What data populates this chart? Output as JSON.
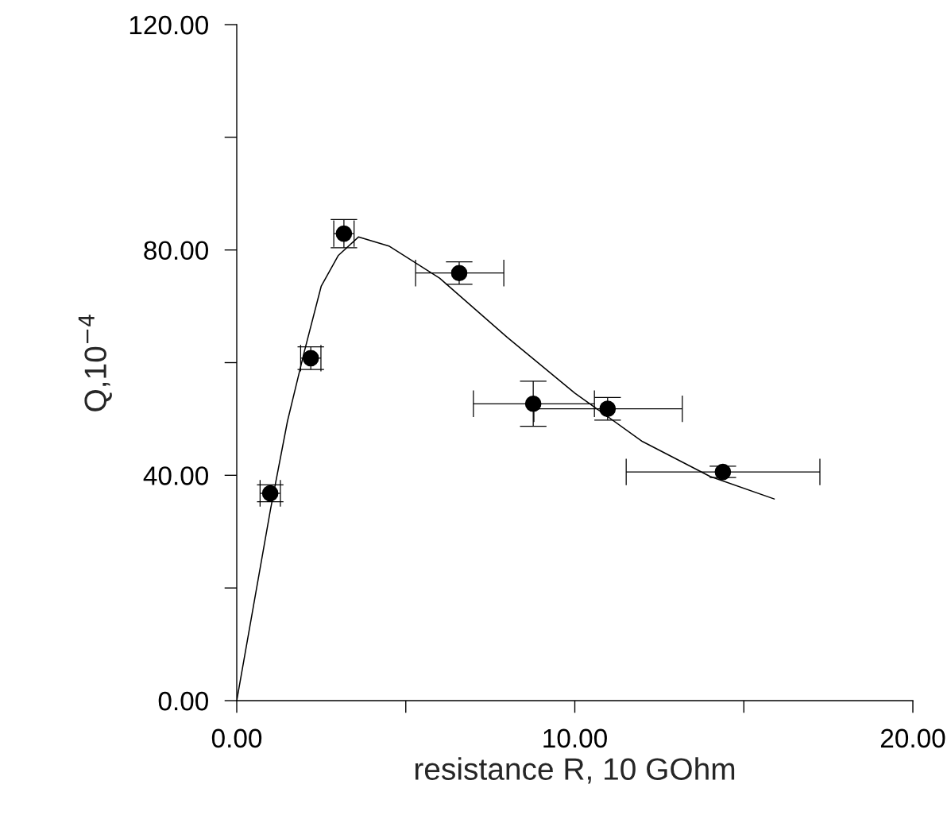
{
  "chart_data": {
    "type": "scatter",
    "xlabel": "resistance R, 10 GOhm",
    "ylabel": "Q,10$^{−4}$",
    "xlim": [
      0,
      20
    ],
    "ylim": [
      0,
      120
    ],
    "xticks": [
      {
        "value": 0,
        "label": "0.00"
      },
      {
        "value": 5,
        "label": null
      },
      {
        "value": 10,
        "label": "10.00"
      },
      {
        "value": 15,
        "label": null
      },
      {
        "value": 20,
        "label": "20.00"
      }
    ],
    "yticks": [
      {
        "value": 0,
        "label": "0.00"
      },
      {
        "value": 20,
        "label": null
      },
      {
        "value": 40,
        "label": "40.00"
      },
      {
        "value": 60,
        "label": null
      },
      {
        "value": 80,
        "label": "80.00"
      },
      {
        "value": 100,
        "label": null
      },
      {
        "value": 120,
        "label": "120.00"
      }
    ],
    "grid": false,
    "legend": false,
    "series": [
      {
        "color": "#000000",
        "marker": "circle",
        "x": [
          0.99,
          2.19,
          3.17,
          6.58,
          8.77,
          10.97,
          14.38
        ],
        "values": [
          36.8,
          60.8,
          82.9,
          75.9,
          52.7,
          51.8,
          40.6
        ],
        "errors": [
          1.5,
          2,
          2.5,
          2,
          4,
          2,
          1
        ],
        "xerrors": [
          0.3,
          0.3,
          0.3,
          [
            5.29,
            7.9
          ],
          [
            7.0,
            10.58
          ],
          [
            8.79,
            13.18
          ],
          [
            11.52,
            17.25
          ]
        ]
      },
      {
        "type": "line",
        "color": "#000000",
        "marker": "none",
        "line_style": "solid",
        "x": [
          0,
          0.5,
          1,
          1.5,
          2,
          2.5,
          3,
          3.6,
          4.5,
          6,
          8,
          10,
          12,
          14,
          15.9
        ],
        "values": [
          0,
          17,
          34,
          49.6,
          62,
          73.6,
          79,
          82.3,
          80.7,
          75,
          64.5,
          54.6,
          46,
          39.8,
          35.8
        ]
      }
    ]
  }
}
